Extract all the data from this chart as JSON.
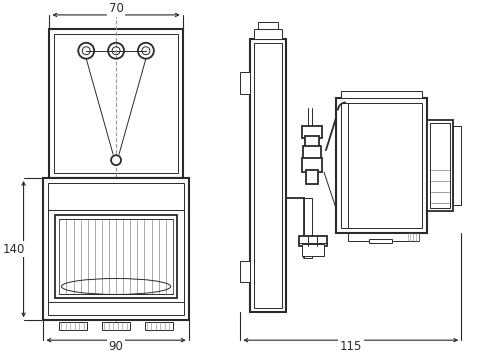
{
  "bg_color": "#ffffff",
  "line_color": "#2a2a2a",
  "dim_color": "#2a2a2a",
  "lw_main": 1.3,
  "lw_thin": 0.7,
  "lw_thick": 1.5,
  "lw_dim": 0.8,
  "fig_width": 5.0,
  "fig_height": 3.54,
  "dpi": 100,
  "labels": {
    "top_width": "70",
    "height": "140",
    "bottom_width": "90",
    "side_width": "115"
  }
}
